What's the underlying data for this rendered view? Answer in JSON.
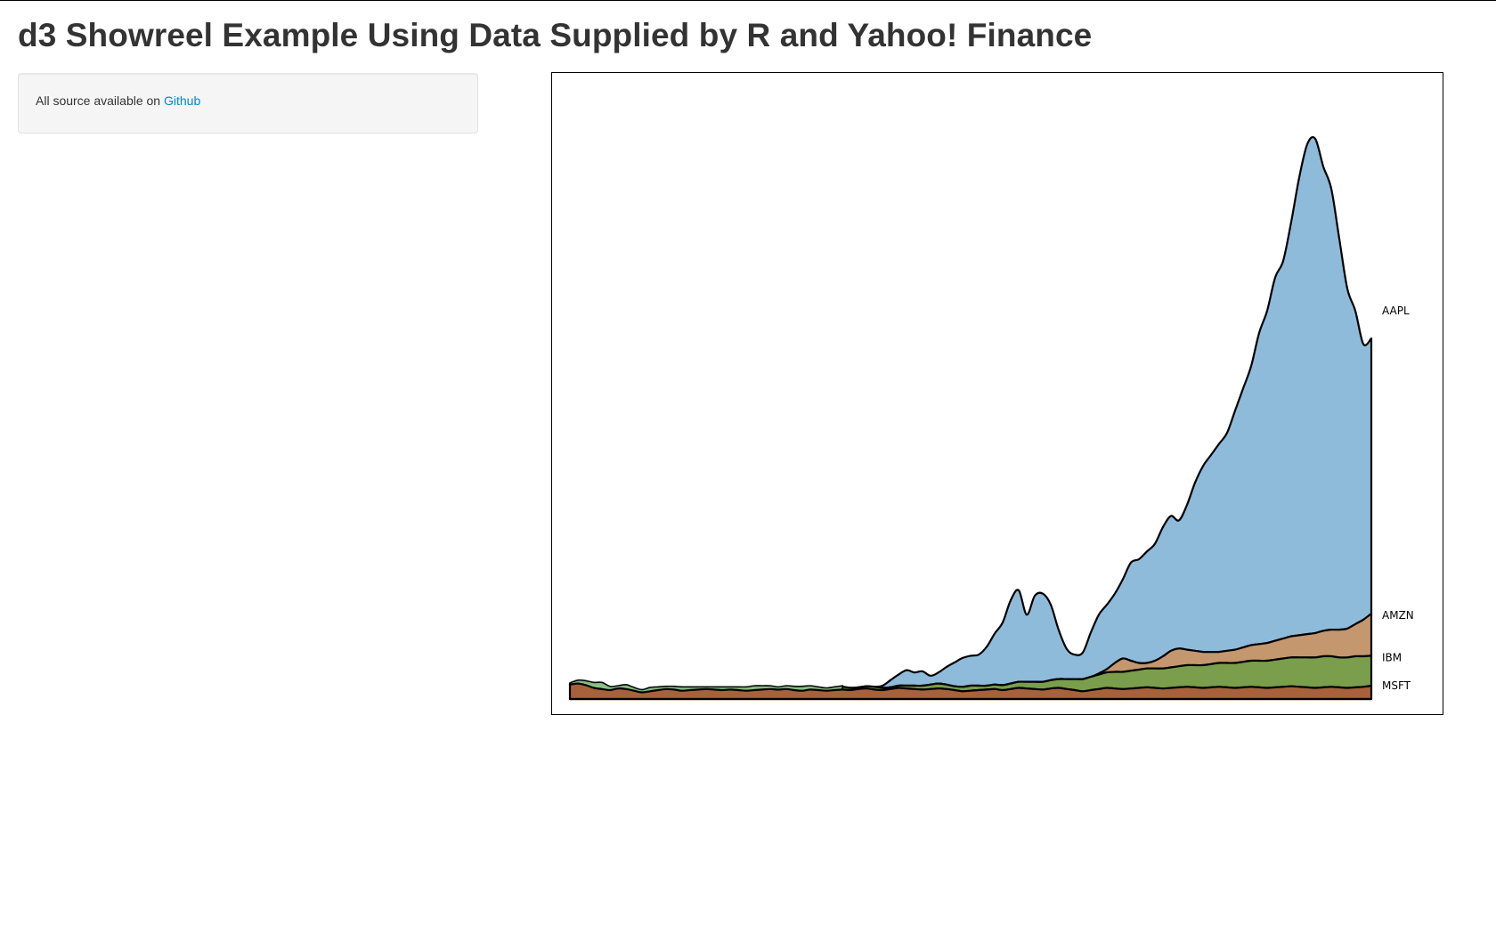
{
  "header": {
    "title": "d3 Showreel Example Using Data Supplied by R and Yahoo! Finance"
  },
  "sidebar": {
    "source_text": "All source available on ",
    "source_link": "Github"
  },
  "colors": {
    "link": "#0088cc",
    "AAPL": "#8fbbdb",
    "AMZN": "#c4976e",
    "IBM": "#7a9e4c",
    "MSFT": "#a7623c",
    "overlap_green": "#8fc98c"
  },
  "chart_data": {
    "type": "area",
    "stacked": true,
    "grid": false,
    "legend": "inline labels at right end of each series",
    "x_index": [
      0,
      2,
      4,
      6,
      8,
      10,
      12,
      14,
      16,
      18,
      20,
      22,
      24,
      26,
      28,
      30,
      32,
      34,
      36,
      38,
      40,
      42,
      44,
      46,
      48,
      50,
      52,
      54,
      56,
      58,
      60,
      62,
      64,
      66,
      68,
      70,
      72,
      74,
      76,
      78,
      80,
      82,
      84,
      86,
      88,
      90,
      92,
      94,
      96,
      98,
      100,
      102,
      104,
      106,
      108,
      110,
      112,
      114,
      116,
      118,
      120,
      122,
      124,
      126,
      128,
      130,
      132,
      134,
      136,
      138,
      140,
      142,
      144,
      146,
      148,
      150,
      152,
      154,
      156,
      158,
      160,
      162,
      164,
      166,
      168,
      170,
      172,
      174,
      176,
      178,
      180,
      182,
      184,
      186,
      188,
      190,
      192,
      194,
      196,
      198,
      200
    ],
    "series": [
      {
        "name": "MSFT",
        "values": [
          26,
          28,
          25,
          20,
          18,
          16,
          19,
          18,
          15,
          12,
          14,
          16,
          18,
          17,
          15,
          16,
          17,
          18,
          17,
          16,
          17,
          16,
          15,
          16,
          17,
          18,
          17,
          18,
          16,
          15,
          17,
          16,
          15,
          16,
          17,
          16,
          18,
          19,
          17,
          16,
          18,
          20,
          19,
          18,
          17,
          18,
          19,
          18,
          16,
          14,
          15,
          16,
          17,
          18,
          16,
          18,
          20,
          19,
          18,
          17,
          19,
          20,
          18,
          16,
          14,
          16,
          18,
          20,
          19,
          18,
          19,
          20,
          21,
          20,
          19,
          20,
          21,
          22,
          21,
          20,
          21,
          22,
          21,
          20,
          21,
          22,
          21,
          20,
          21,
          22,
          23,
          22,
          21,
          20,
          21,
          22,
          21,
          20,
          21,
          22,
          24
        ]
      },
      {
        "name": "IBM",
        "values": [
          1,
          4,
          6,
          8,
          10,
          5,
          3,
          6,
          4,
          3,
          5,
          4,
          3,
          4,
          5,
          4,
          3,
          2,
          3,
          4,
          3,
          4,
          5,
          6,
          5,
          4,
          3,
          4,
          5,
          6,
          5,
          4,
          3,
          4,
          5,
          4,
          3,
          4,
          5,
          4,
          3,
          4,
          5,
          6,
          7,
          8,
          9,
          8,
          7,
          8,
          9,
          8,
          7,
          8,
          9,
          10,
          11,
          12,
          13,
          14,
          15,
          16,
          18,
          20,
          22,
          24,
          26,
          28,
          30,
          31,
          32,
          33,
          34,
          35,
          36,
          37,
          38,
          39,
          40,
          41,
          42,
          43,
          44,
          45,
          46,
          47,
          48,
          49,
          50,
          51,
          52,
          53,
          54,
          55,
          56,
          55,
          54,
          55,
          56,
          55,
          54
        ]
      },
      {
        "name": "AMZN",
        "values": [
          0,
          0,
          0,
          0,
          0,
          0,
          0,
          0,
          0,
          0,
          0,
          0,
          0,
          0,
          0,
          0,
          0,
          0,
          0,
          0,
          0,
          0,
          0,
          0,
          0,
          0,
          0,
          0,
          0,
          0,
          0,
          0,
          0,
          0,
          0,
          0,
          0,
          0,
          0,
          0,
          0,
          0,
          0,
          0,
          0,
          0,
          0,
          0,
          0,
          0,
          0,
          0,
          0,
          0,
          0,
          0,
          0,
          0,
          0,
          0,
          0,
          0,
          0,
          0,
          0,
          0,
          2,
          6,
          16,
          24,
          18,
          12,
          10,
          14,
          22,
          30,
          32,
          28,
          26,
          24,
          22,
          20,
          22,
          24,
          26,
          28,
          30,
          32,
          34,
          36,
          38,
          40,
          42,
          44,
          46,
          48,
          50,
          52,
          58,
          66,
          76
        ]
      },
      {
        "name": "AAPL",
        "values": [
          0,
          0,
          1,
          0,
          0,
          0,
          0,
          0,
          0,
          0,
          0,
          0,
          0,
          0,
          0,
          0,
          0,
          0,
          0,
          0,
          0,
          0,
          0,
          0,
          0,
          0,
          0,
          0,
          0,
          0,
          0,
          0,
          0,
          0,
          0,
          0,
          0,
          0,
          0,
          0,
          0,
          0,
          0,
          0,
          0,
          0,
          0,
          0,
          0,
          0,
          0,
          0,
          0,
          0,
          0,
          0,
          0,
          0,
          0,
          0,
          0,
          0,
          0,
          0,
          0,
          0,
          0,
          0,
          0,
          0,
          0,
          0,
          0,
          0,
          0,
          0,
          0,
          0,
          0,
          0,
          0,
          0,
          0,
          0,
          0,
          0,
          0,
          0,
          0,
          0,
          0,
          0,
          0,
          0,
          0,
          0,
          0,
          0,
          0,
          0,
          0
        ]
      }
    ],
    "aapl_path_values": [
      0,
      2,
      6,
      2,
      0,
      1,
      2,
      1,
      0,
      1,
      2,
      1,
      0,
      1,
      2,
      3,
      2,
      1,
      2,
      3,
      2,
      2,
      1,
      2,
      3,
      4,
      3,
      2,
      3,
      4,
      3,
      2,
      3,
      4,
      6,
      10,
      14,
      12,
      16,
      24,
      34,
      44,
      52,
      48,
      50,
      42,
      48,
      58,
      66,
      74,
      78,
      80,
      94,
      118,
      138,
      178,
      196,
      152,
      186,
      190,
      170,
      124,
      90,
      80,
      84,
      120,
      152,
      170,
      190,
      216,
      246,
      252,
      266,
      280,
      310,
      330,
      322,
      350,
      390,
      420,
      440,
      460,
      480,
      520,
      560,
      600,
      660,
      700,
      760,
      790,
      860,
      940,
      1000,
      1010,
      960,
      920,
      830,
      740,
      700,
      640,
      650
    ]
  }
}
